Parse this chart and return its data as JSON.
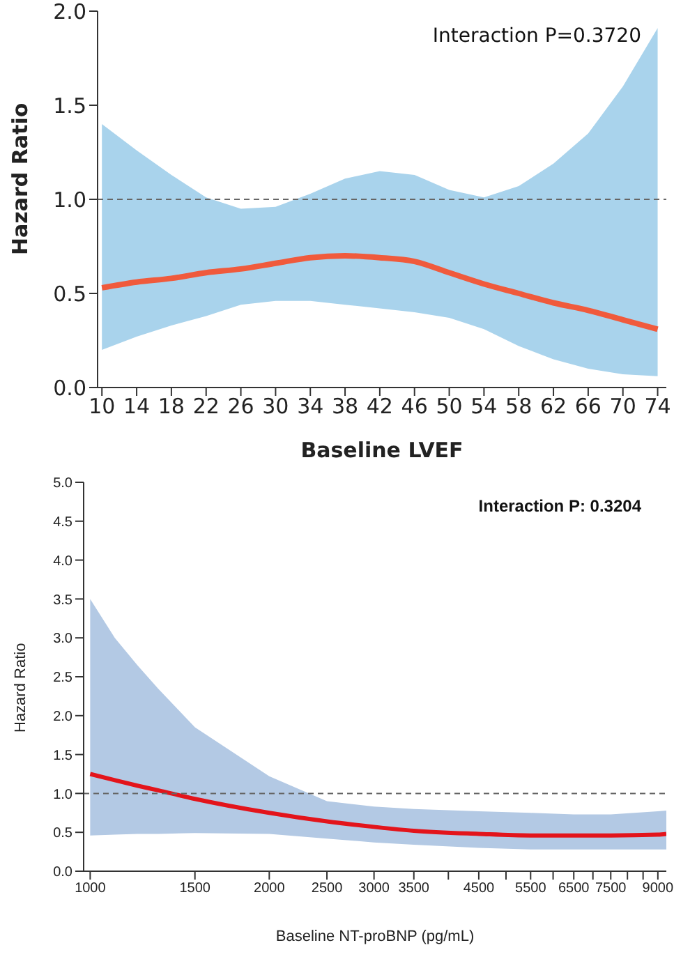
{
  "chart_data": [
    {
      "type": "line",
      "xlabel": "Baseline LVEF",
      "ylabel": "Hazard Ratio",
      "annotations": [
        "Interaction P=0.3720"
      ],
      "x": [
        10,
        14,
        18,
        22,
        26,
        30,
        34,
        38,
        42,
        46,
        50,
        54,
        58,
        62,
        66,
        70,
        74
      ],
      "series": [
        {
          "color": "#f05a3c",
          "values": [
            0.53,
            0.56,
            0.58,
            0.61,
            0.63,
            0.66,
            0.69,
            0.7,
            0.69,
            0.67,
            0.61,
            0.55,
            0.5,
            0.45,
            0.41,
            0.36,
            0.31
          ],
          "lower": [
            0.2,
            0.27,
            0.33,
            0.38,
            0.44,
            0.46,
            0.46,
            0.44,
            0.42,
            0.4,
            0.37,
            0.31,
            0.22,
            0.15,
            0.1,
            0.07,
            0.06
          ],
          "upper": [
            1.4,
            1.26,
            1.13,
            1.01,
            0.95,
            0.96,
            1.03,
            1.11,
            1.15,
            1.13,
            1.05,
            1.01,
            1.07,
            1.19,
            1.35,
            1.6,
            1.91
          ]
        }
      ],
      "xlim": [
        9.5,
        75
      ],
      "xticks": [
        10,
        14,
        18,
        22,
        26,
        30,
        34,
        38,
        42,
        46,
        50,
        54,
        58,
        62,
        66,
        70,
        74
      ],
      "ylim": [
        0,
        2
      ],
      "yticks": [
        {
          "value": 0,
          "label": "0.0"
        },
        {
          "value": 0.5,
          "label": "0.5"
        },
        {
          "value": 1,
          "label": "1.0"
        },
        {
          "value": 1.5,
          "label": "1.5"
        },
        {
          "value": 2,
          "label": "2.0"
        }
      ],
      "ref_lines": [
        {
          "axis": "y",
          "value": 1,
          "color": "#666666",
          "line_style": "dashed"
        }
      ],
      "grid": false,
      "legend": false,
      "marker": "none"
    },
    {
      "type": "line",
      "xlabel": "Baseline NT-proBNP (pg/mL)",
      "ylabel": "Hazard Ratio",
      "annotations": [
        "Interaction P: 0.3204"
      ],
      "log": "x",
      "x": [
        1000,
        1100,
        1200,
        1300,
        1500,
        2000,
        2500,
        3000,
        3500,
        4500,
        5500,
        6500,
        7500,
        9000,
        9300
      ],
      "series": [
        {
          "color": "#e3141b",
          "values": [
            1.25,
            1.17,
            1.1,
            1.04,
            0.93,
            0.75,
            0.64,
            0.57,
            0.52,
            0.48,
            0.46,
            0.46,
            0.46,
            0.47,
            0.48
          ],
          "lower": [
            0.46,
            0.47,
            0.48,
            0.48,
            0.49,
            0.48,
            0.42,
            0.37,
            0.34,
            0.3,
            0.28,
            0.28,
            0.28,
            0.28,
            0.28
          ],
          "upper": [
            3.5,
            3.0,
            2.65,
            2.35,
            1.85,
            1.22,
            0.9,
            0.83,
            0.8,
            0.77,
            0.75,
            0.73,
            0.73,
            0.77,
            0.78
          ]
        }
      ],
      "xlim": [
        975,
        9300
      ],
      "xticks": [
        1000,
        1500,
        2000,
        2500,
        3000,
        3500,
        {
          "value": 4000,
          "label": null
        },
        4500,
        {
          "value": 5000,
          "label": null
        },
        5500,
        {
          "value": 6000,
          "label": null
        },
        6500,
        {
          "value": 7000,
          "label": null
        },
        7500,
        {
          "value": 8000,
          "label": null
        },
        {
          "value": 8500,
          "label": null
        },
        9000
      ],
      "ylim": [
        0,
        5
      ],
      "yticks": [
        {
          "value": 0,
          "label": "0.0"
        },
        {
          "value": 0.5,
          "label": "0.5"
        },
        {
          "value": 1,
          "label": "1.0"
        },
        {
          "value": 1.5,
          "label": "1.5"
        },
        {
          "value": 2,
          "label": "2.0"
        },
        {
          "value": 2.5,
          "label": "2.5"
        },
        {
          "value": 3,
          "label": "3.0"
        },
        {
          "value": 3.5,
          "label": "3.5"
        },
        {
          "value": 4,
          "label": "4.0"
        },
        {
          "value": 4.5,
          "label": "4.5"
        },
        {
          "value": 5,
          "label": "5.0"
        }
      ],
      "ref_lines": [
        {
          "axis": "y",
          "value": 1,
          "color": "#666666",
          "line_style": "dashed"
        }
      ],
      "grid": false,
      "legend": false,
      "marker": "none"
    }
  ]
}
